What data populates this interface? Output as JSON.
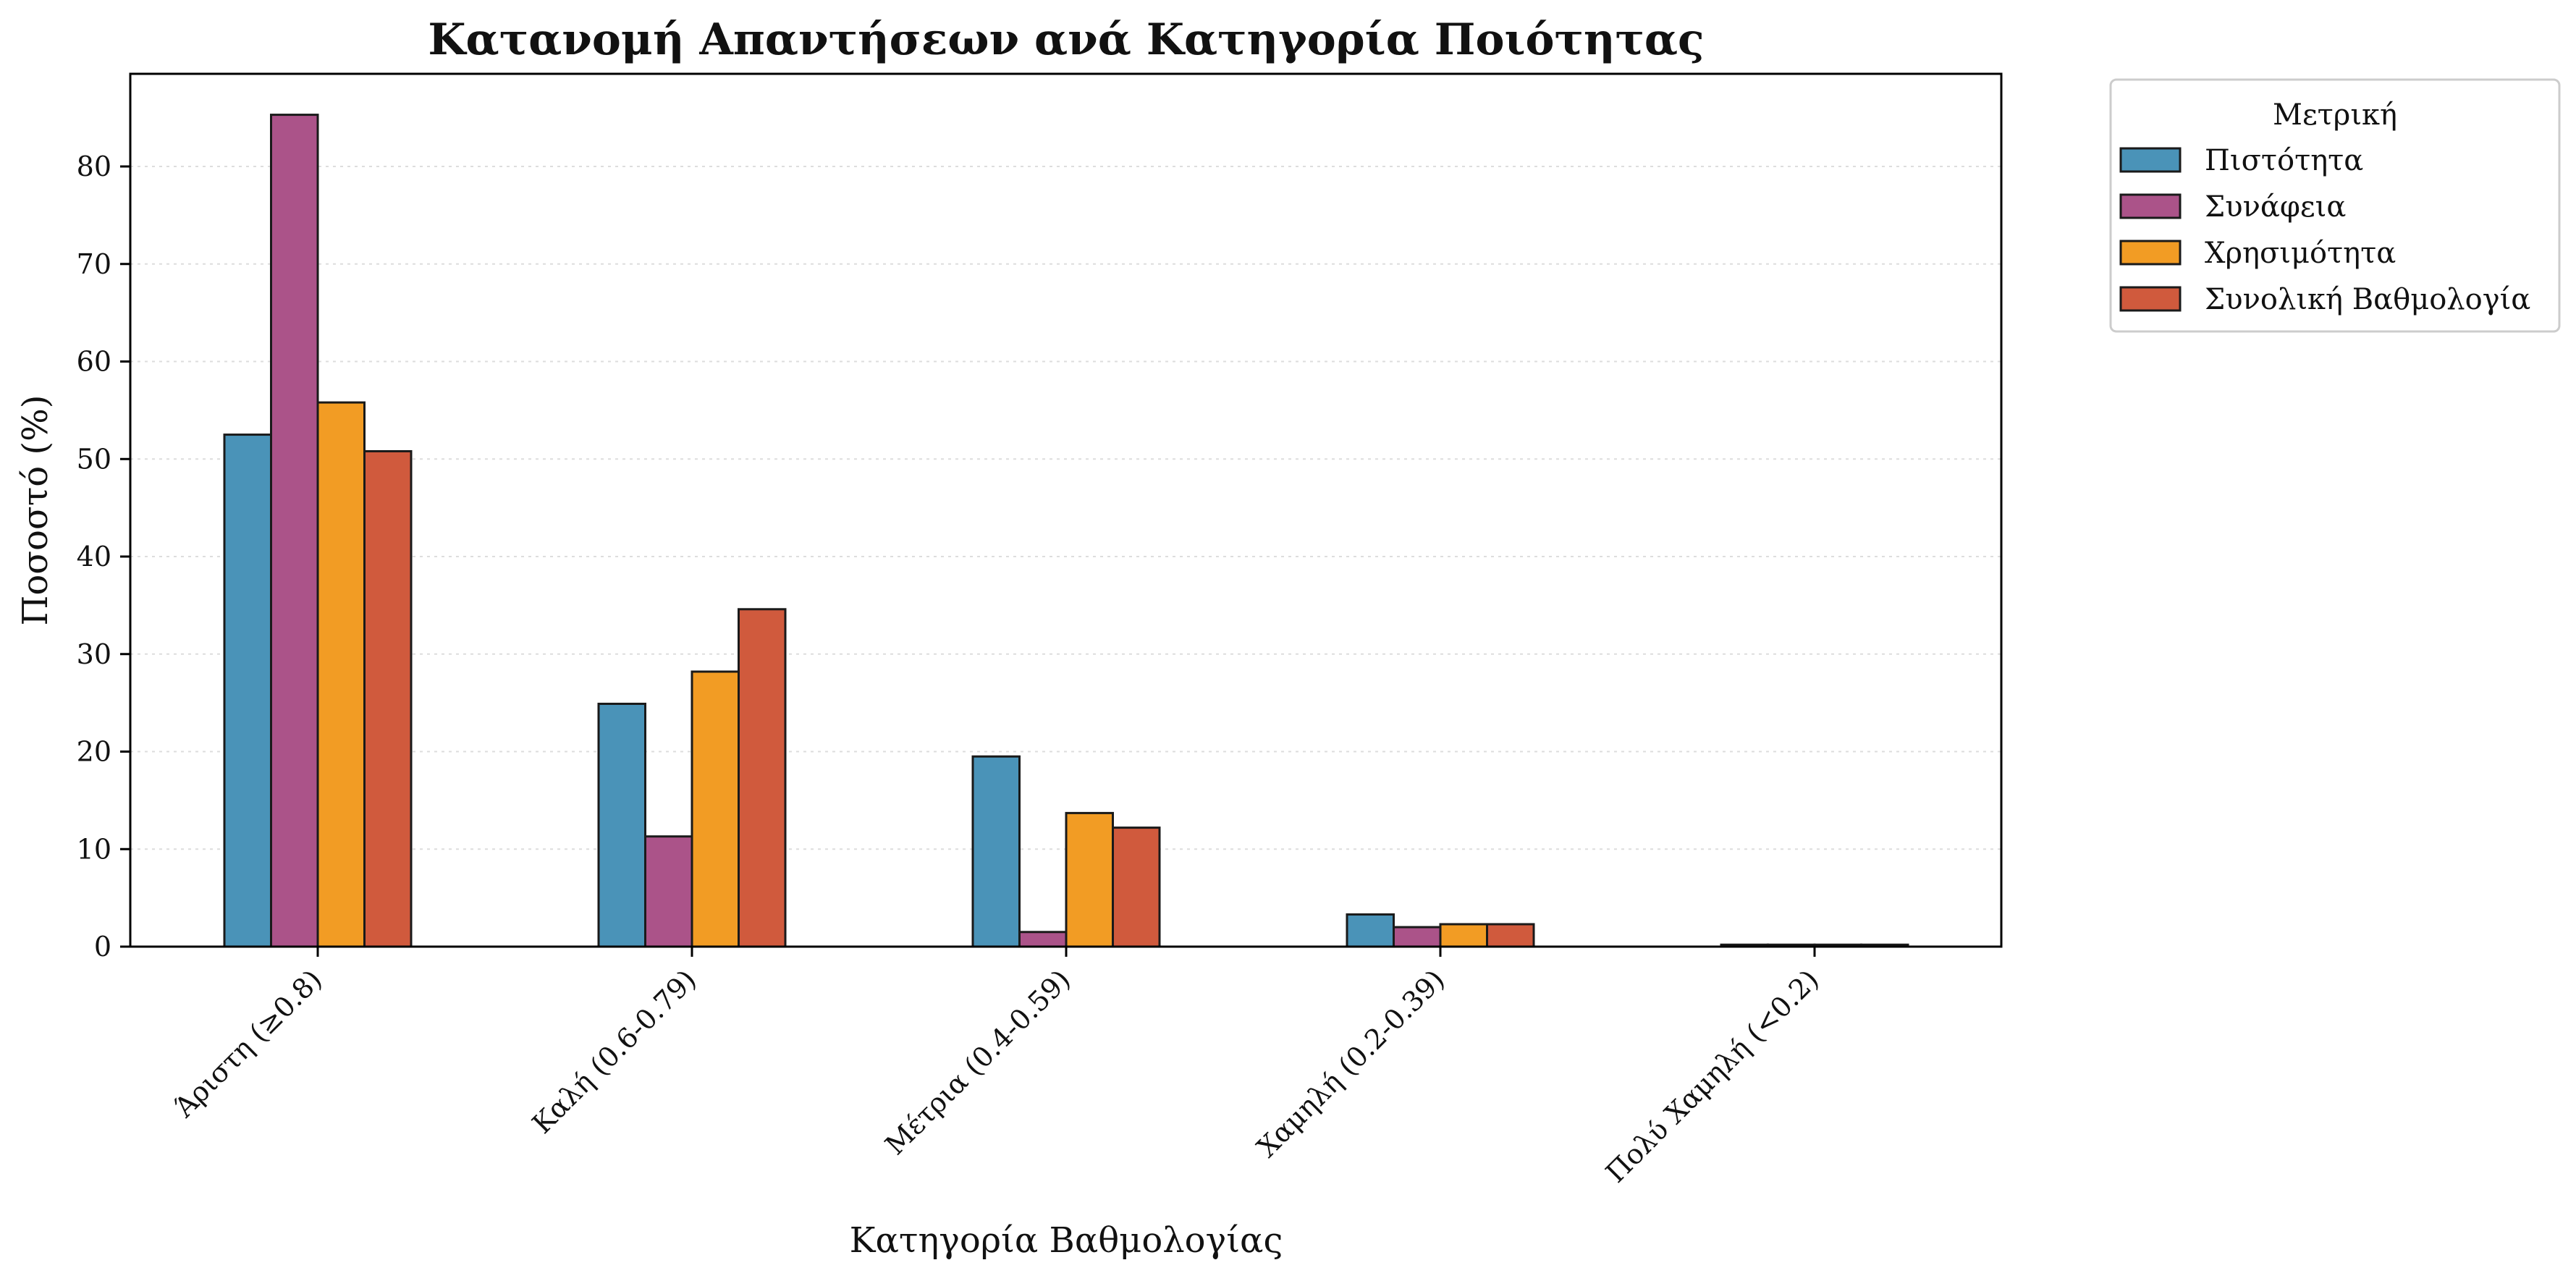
{
  "chart_data": {
    "type": "bar",
    "title": "Κατανομή Απαντήσεων ανά Κατηγορία Ποιότητας",
    "xlabel": "Κατηγορία Βαθμολογίας",
    "ylabel": "Ποσοστό (%)",
    "ylim": [
      0,
      89.5
    ],
    "yticks": [
      0,
      10,
      20,
      30,
      40,
      50,
      60,
      70,
      80
    ],
    "grid": true,
    "legend_title": "Μετρική",
    "legend_position": "outside-top-right",
    "categories": [
      "Άριστη (≥0.8)",
      "Καλή (0.6-0.79)",
      "Μέτρια (0.4-0.59)",
      "Χαμηλή (0.2-0.39)",
      "Πολύ Χαμηλή (<0.2)"
    ],
    "series": [
      {
        "name": "Πιστότητα",
        "color": "#4a93b8",
        "values": [
          52.5,
          24.9,
          19.5,
          3.3,
          0.2
        ]
      },
      {
        "name": "Συνάφεια",
        "color": "#ab5389",
        "values": [
          85.3,
          11.3,
          1.5,
          2.0,
          0.2
        ]
      },
      {
        "name": "Χρησιμότητα",
        "color": "#f29c24",
        "values": [
          55.8,
          28.2,
          13.7,
          2.3,
          0.2
        ]
      },
      {
        "name": "Συνολική Βαθμολογία",
        "color": "#d05a3d",
        "values": [
          50.8,
          34.6,
          12.2,
          2.3,
          0.2
        ]
      }
    ]
  }
}
